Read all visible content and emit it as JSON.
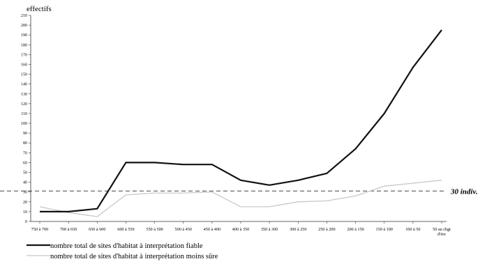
{
  "chart_data": {
    "type": "line",
    "ylabel": "effectifs",
    "xlabel": "",
    "ylim": [
      0,
      210
    ],
    "yticks": [
      0,
      10,
      20,
      30,
      40,
      50,
      60,
      70,
      80,
      90,
      100,
      110,
      120,
      130,
      140,
      150,
      160,
      170,
      180,
      190,
      200,
      210
    ],
    "categories": [
      "750 à 700",
      "700 à 650",
      "650 à 600",
      "600 à 550",
      "550 à 500",
      "500 à 450",
      "450 à 400",
      "400 à 350",
      "350 à 300",
      "300 à 250",
      "250 à 200",
      "200 à 150",
      "150 à 100",
      "100 à 50",
      "50 au chgt d'ère"
    ],
    "series": [
      {
        "name": "nombre total de sites d'habitat à interprétation fiable",
        "color": "#111111",
        "values": [
          10,
          10,
          13,
          60,
          60,
          58,
          58,
          42,
          37,
          42,
          49,
          74,
          110,
          157,
          195
        ]
      },
      {
        "name": "nombre total de sites d'habitat à interprétation moins sûre",
        "color": "#c8c8c8",
        "values": [
          15,
          9,
          5,
          27,
          29,
          29,
          30,
          15,
          15,
          20,
          21,
          26,
          36,
          39,
          42
        ]
      }
    ],
    "reference_line": {
      "value": 31,
      "label": "30 indiv.",
      "style": "dashed"
    },
    "legend_placement": "bottom-left",
    "grid": false
  }
}
